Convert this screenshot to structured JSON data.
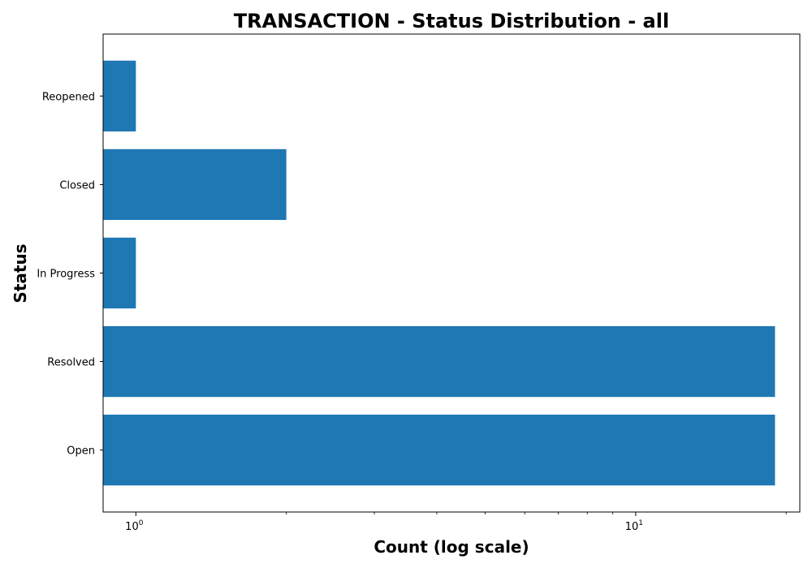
{
  "chart_data": {
    "type": "bar",
    "orientation": "horizontal",
    "title": "TRANSACTION - Status Distribution - all",
    "xlabel": "Count (log scale)",
    "ylabel": "Status",
    "x_scale": "log",
    "xlim": [
      0.86,
      21.3
    ],
    "x_major_ticks": [
      {
        "value": 1,
        "base": "10",
        "exp": "0"
      },
      {
        "value": 10,
        "base": "10",
        "exp": "1"
      }
    ],
    "x_minor_ticks": [
      2,
      3,
      4,
      5,
      6,
      7,
      8,
      9,
      20
    ],
    "categories": [
      "Open",
      "Resolved",
      "In Progress",
      "Closed",
      "Reopened"
    ],
    "values": [
      19,
      19,
      1,
      2,
      1
    ],
    "grid": false,
    "bar_color": "#1f77b4"
  }
}
